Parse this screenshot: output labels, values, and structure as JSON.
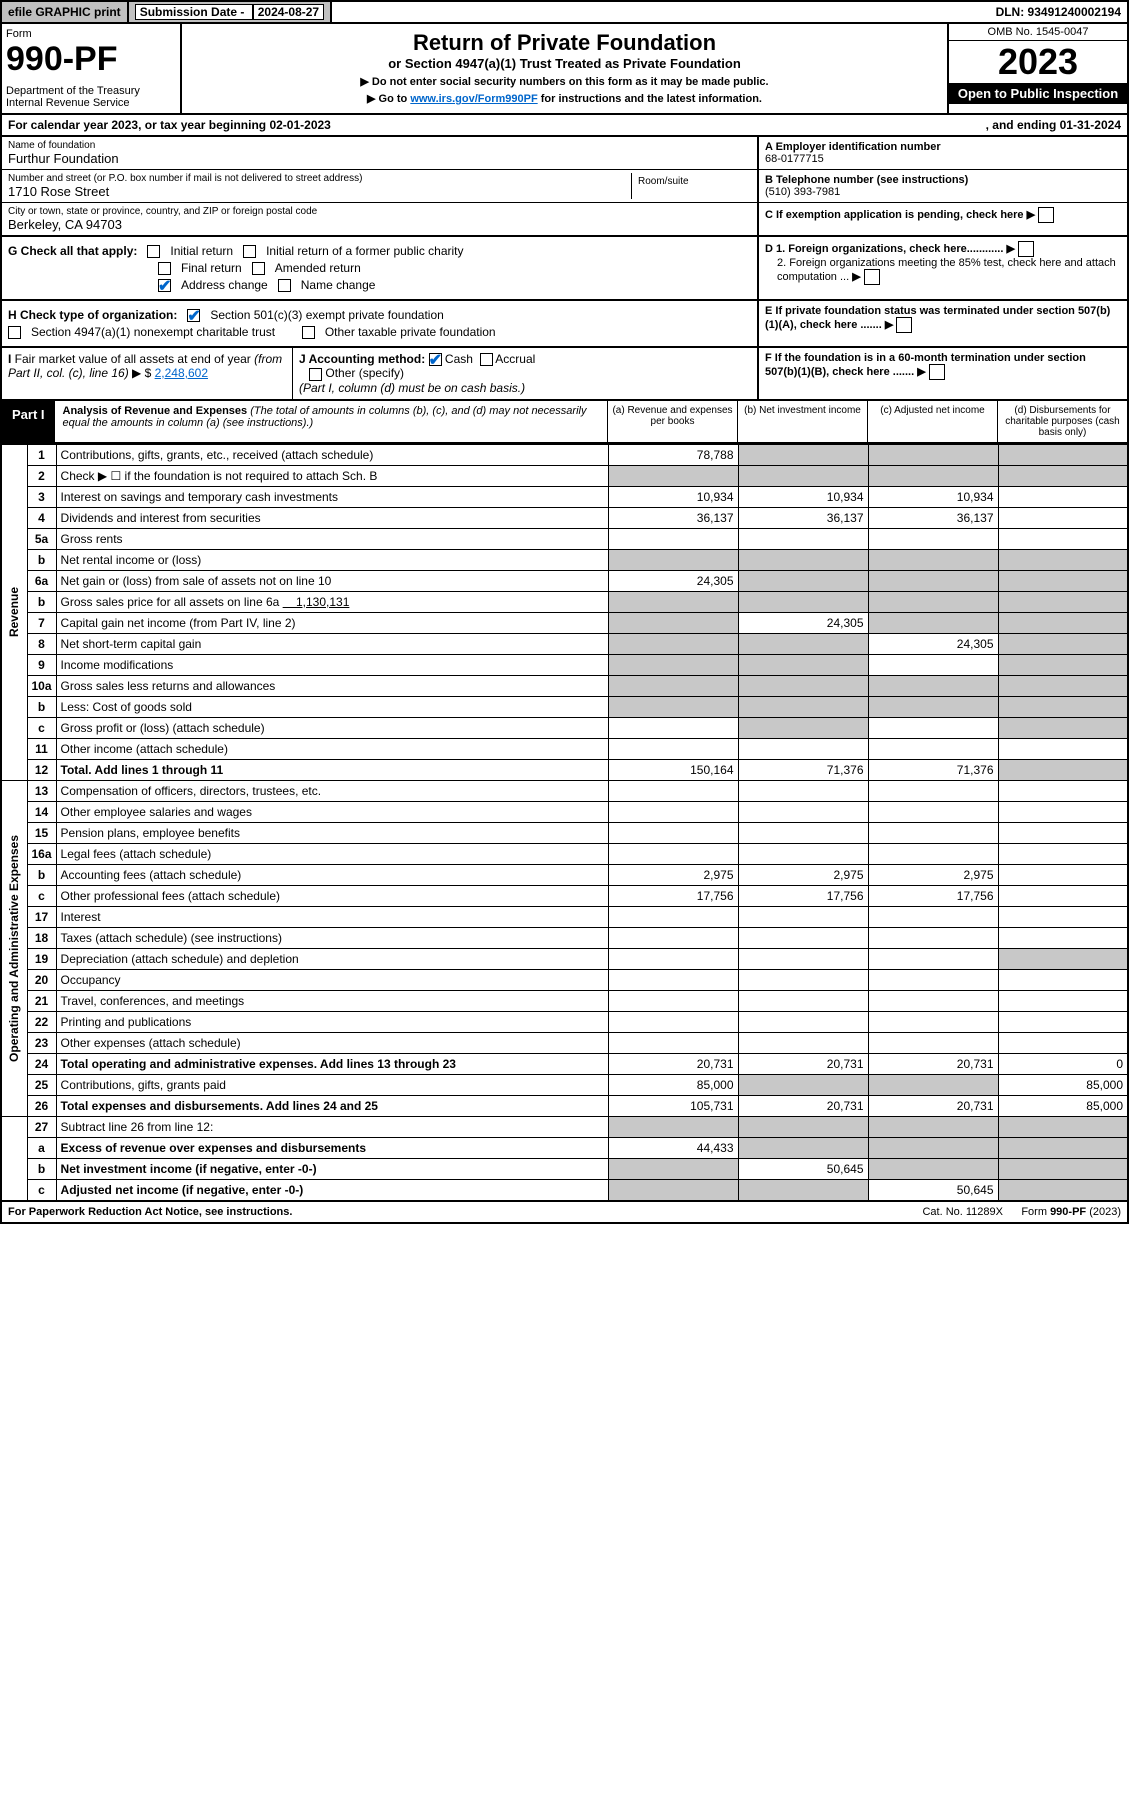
{
  "topbar": {
    "efile": "efile GRAPHIC print",
    "subdate_lbl": "Submission Date - ",
    "subdate_val": "2024-08-27",
    "dln": "DLN: 93491240002194"
  },
  "header": {
    "form_word": "Form",
    "form_no": "990-PF",
    "dept": "Department of the Treasury\nInternal Revenue Service",
    "title": "Return of Private Foundation",
    "subtitle": "or Section 4947(a)(1) Trust Treated as Private Foundation",
    "note1": "▶ Do not enter social security numbers on this form as it may be made public.",
    "note2_pre": "▶ Go to ",
    "note2_link": "www.irs.gov/Form990PF",
    "note2_post": " for instructions and the latest information.",
    "omb": "OMB No. 1545-0047",
    "year": "2023",
    "open": "Open to Public Inspection"
  },
  "calyear": {
    "pre": "For calendar year 2023, or tax year beginning ",
    "begin": "02-01-2023",
    "mid": ", and ending ",
    "end": "01-31-2024"
  },
  "foundation": {
    "name_lbl": "Name of foundation",
    "name": "Furthur Foundation",
    "addr_lbl": "Number and street (or P.O. box number if mail is not delivered to street address)",
    "room_lbl": "Room/suite",
    "addr": "1710 Rose Street",
    "city_lbl": "City or town, state or province, country, and ZIP or foreign postal code",
    "city": "Berkeley, CA  94703"
  },
  "right_info": {
    "a_lbl": "A Employer identification number",
    "a_val": "68-0177715",
    "b_lbl": "B Telephone number (see instructions)",
    "b_val": "(510) 393-7981",
    "c_lbl": "C If exemption application is pending, check here",
    "d1": "D 1. Foreign organizations, check here............",
    "d2": "2. Foreign organizations meeting the 85% test, check here and attach computation ...",
    "e": "E  If private foundation status was terminated under section 507(b)(1)(A), check here .......",
    "f": "F  If the foundation is in a 60-month termination under section 507(b)(1)(B), check here ......."
  },
  "checks": {
    "g_lbl": "G Check all that apply:",
    "g1": "Initial return",
    "g2": "Initial return of a former public charity",
    "g3": "Final return",
    "g4": "Amended return",
    "g5": "Address change",
    "g6": "Name change",
    "h_lbl": "H Check type of organization:",
    "h1": "Section 501(c)(3) exempt private foundation",
    "h2": "Section 4947(a)(1) nonexempt charitable trust",
    "h3": "Other taxable private foundation",
    "i_lbl": "I Fair market value of all assets at end of year (from Part II, col. (c), line 16) ▶ $",
    "i_val": "2,248,602",
    "j_lbl": "J Accounting method:",
    "j1": "Cash",
    "j2": "Accrual",
    "j3": "Other (specify)",
    "j_note": "(Part I, column (d) must be on cash basis.)"
  },
  "part1": {
    "tab": "Part I",
    "title": "Analysis of Revenue and Expenses",
    "note": "(The total of amounts in columns (b), (c), and (d) may not necessarily equal the amounts in column (a) (see instructions).)",
    "col_a": "(a)  Revenue and expenses per books",
    "col_b": "(b)  Net investment income",
    "col_c": "(c)  Adjusted net income",
    "col_d": "(d)  Disbursements for charitable purposes (cash basis only)"
  },
  "sidelabels": {
    "rev": "Revenue",
    "exp": "Operating and Administrative Expenses"
  },
  "rows": {
    "r1": {
      "n": "1",
      "d": "Contributions, gifts, grants, etc., received (attach schedule)",
      "a": "78,788"
    },
    "r2": {
      "n": "2",
      "d": "Check ▶ ☐ if the foundation is not required to attach Sch. B"
    },
    "r3": {
      "n": "3",
      "d": "Interest on savings and temporary cash investments",
      "a": "10,934",
      "b": "10,934",
      "c": "10,934"
    },
    "r4": {
      "n": "4",
      "d": "Dividends and interest from securities",
      "a": "36,137",
      "b": "36,137",
      "c": "36,137"
    },
    "r5a": {
      "n": "5a",
      "d": "Gross rents"
    },
    "r5b": {
      "n": "b",
      "d": "Net rental income or (loss)"
    },
    "r6a": {
      "n": "6a",
      "d": "Net gain or (loss) from sale of assets not on line 10",
      "a": "24,305"
    },
    "r6b": {
      "n": "b",
      "d": "Gross sales price for all assets on line 6a",
      "inline": "1,130,131"
    },
    "r7": {
      "n": "7",
      "d": "Capital gain net income (from Part IV, line 2)",
      "b": "24,305"
    },
    "r8": {
      "n": "8",
      "d": "Net short-term capital gain",
      "c": "24,305"
    },
    "r9": {
      "n": "9",
      "d": "Income modifications"
    },
    "r10a": {
      "n": "10a",
      "d": "Gross sales less returns and allowances"
    },
    "r10b": {
      "n": "b",
      "d": "Less: Cost of goods sold"
    },
    "r10c": {
      "n": "c",
      "d": "Gross profit or (loss) (attach schedule)"
    },
    "r11": {
      "n": "11",
      "d": "Other income (attach schedule)"
    },
    "r12": {
      "n": "12",
      "d": "Total. Add lines 1 through 11",
      "a": "150,164",
      "b": "71,376",
      "c": "71,376"
    },
    "r13": {
      "n": "13",
      "d": "Compensation of officers, directors, trustees, etc."
    },
    "r14": {
      "n": "14",
      "d": "Other employee salaries and wages"
    },
    "r15": {
      "n": "15",
      "d": "Pension plans, employee benefits"
    },
    "r16a": {
      "n": "16a",
      "d": "Legal fees (attach schedule)"
    },
    "r16b": {
      "n": "b",
      "d": "Accounting fees (attach schedule)",
      "a": "2,975",
      "b": "2,975",
      "c": "2,975"
    },
    "r16c": {
      "n": "c",
      "d": "Other professional fees (attach schedule)",
      "a": "17,756",
      "b": "17,756",
      "c": "17,756"
    },
    "r17": {
      "n": "17",
      "d": "Interest"
    },
    "r18": {
      "n": "18",
      "d": "Taxes (attach schedule) (see instructions)"
    },
    "r19": {
      "n": "19",
      "d": "Depreciation (attach schedule) and depletion"
    },
    "r20": {
      "n": "20",
      "d": "Occupancy"
    },
    "r21": {
      "n": "21",
      "d": "Travel, conferences, and meetings"
    },
    "r22": {
      "n": "22",
      "d": "Printing and publications"
    },
    "r23": {
      "n": "23",
      "d": "Other expenses (attach schedule)"
    },
    "r24": {
      "n": "24",
      "d": "Total operating and administrative expenses. Add lines 13 through 23",
      "a": "20,731",
      "b": "20,731",
      "c": "20,731",
      "dd": "0"
    },
    "r25": {
      "n": "25",
      "d": "Contributions, gifts, grants paid",
      "a": "85,000",
      "dd": "85,000"
    },
    "r26": {
      "n": "26",
      "d": "Total expenses and disbursements. Add lines 24 and 25",
      "a": "105,731",
      "b": "20,731",
      "c": "20,731",
      "dd": "85,000"
    },
    "r27": {
      "n": "27",
      "d": "Subtract line 26 from line 12:"
    },
    "r27a": {
      "n": "a",
      "d": "Excess of revenue over expenses and disbursements",
      "a": "44,433"
    },
    "r27b": {
      "n": "b",
      "d": "Net investment income (if negative, enter -0-)",
      "b": "50,645"
    },
    "r27c": {
      "n": "c",
      "d": "Adjusted net income (if negative, enter -0-)",
      "c": "50,645"
    }
  },
  "footer": {
    "left": "For Paperwork Reduction Act Notice, see instructions.",
    "mid": "Cat. No. 11289X",
    "right": "Form 990-PF (2023)"
  },
  "style": {
    "shade_color": "#c8c8c8",
    "link_color": "#0066cc",
    "check_color": "#0066cc"
  }
}
